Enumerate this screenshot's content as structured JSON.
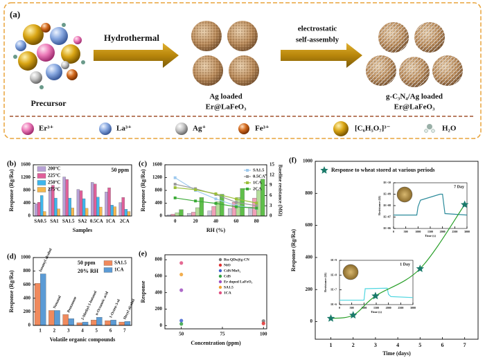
{
  "panel_a": {
    "label": "(a)",
    "step1": "Hydrothermal",
    "step2": [
      "electrostatic",
      "self-assembly"
    ],
    "precursor": "Precursor",
    "intermediate": [
      "Ag loaded",
      "Er@LaFeO₃"
    ],
    "product": [
      "g-C₃N₄/Ag loaded",
      "Er@LaFeO₃"
    ],
    "legend": [
      "Er³⁺",
      "La³⁺",
      "Ag⁺",
      "Fe³⁺",
      "[C₆H₅O₇]³⁻",
      "H₂O"
    ]
  },
  "chart_data": [
    {
      "type": "bar",
      "panel_label": "(b)",
      "annotations": [
        "50 ppm"
      ],
      "xlabel": "Samples",
      "ylabel": "Response (Rg/Ra)",
      "categories": [
        "SA0.5",
        "SA1",
        "SA1.5",
        "SA2",
        "0.5CA",
        "1CA",
        "2CA"
      ],
      "series": [
        {
          "name": "200°C",
          "color": "#b8a1d6",
          "values": [
            380,
            870,
            1220,
            830,
            1050,
            750,
            420
          ]
        },
        {
          "name": "225°C",
          "color": "#e0609a",
          "values": [
            430,
            960,
            1140,
            790,
            1000,
            880,
            580
          ]
        },
        {
          "name": "250°C",
          "color": "#3fb6ec",
          "values": [
            640,
            560,
            560,
            540,
            590,
            340,
            210
          ]
        },
        {
          "name": "275°C",
          "color": "#f5b74e",
          "values": [
            140,
            220,
            250,
            240,
            280,
            290,
            140
          ]
        }
      ],
      "ylim": [
        0,
        1600
      ],
      "yticks": [
        0,
        400,
        800,
        1200,
        1600
      ],
      "legend": "upper left"
    },
    {
      "type": "bar-line",
      "panel_label": "(c)",
      "xlabel": "RH (%)",
      "ylabel": "Response (Rg/Ra)",
      "y2label": "Baseline resistance (MΩ)",
      "categories": [
        0,
        20,
        40,
        60,
        80
      ],
      "series": [
        {
          "type": "bar",
          "color": "#c9c9dc",
          "values": [
            40,
            80,
            160,
            230,
            280
          ]
        },
        {
          "type": "bar",
          "color": "#f0a0b8",
          "values": [
            60,
            120,
            300,
            430,
            560
          ]
        },
        {
          "type": "bar",
          "color": "#b5dd9a",
          "values": [
            100,
            260,
            450,
            580,
            800
          ]
        },
        {
          "type": "bar",
          "color": "#5fbf4a",
          "values": [
            200,
            580,
            680,
            860,
            1150
          ]
        },
        {
          "type": "line",
          "name": "SA1.5",
          "color": "#9dc9ee",
          "axis": "y2",
          "values": [
            11.2,
            7.5,
            5,
            3,
            2.2
          ]
        },
        {
          "type": "line",
          "name": "0.5CA",
          "color": "#999999",
          "axis": "y2",
          "values": [
            9.3,
            8,
            6.3,
            4,
            3
          ]
        },
        {
          "type": "line",
          "name": "1CA",
          "color": "#9bbf3a",
          "axis": "y2",
          "values": [
            8.3,
            7.7,
            6.5,
            5,
            3.8
          ]
        },
        {
          "type": "line",
          "name": "2CA",
          "color": "#3aaa35",
          "axis": "y2",
          "values": [
            5.3,
            4.4,
            3.7,
            2.7,
            2.3
          ]
        }
      ],
      "ylim": [
        0,
        1600
      ],
      "yticks": [
        0,
        400,
        800,
        1200,
        1600
      ],
      "y2lim": [
        0,
        15
      ],
      "y2ticks": [
        0,
        3,
        6,
        9,
        12,
        15
      ],
      "legend": "upper right"
    },
    {
      "type": "bar",
      "panel_label": "(d)",
      "annotations": [
        "50 ppm",
        "20% RH"
      ],
      "xlabel": "Volatile organic compounds",
      "ylabel": "Response (Rg/Ra)",
      "categories": [
        1,
        2,
        3,
        4,
        5,
        6,
        7
      ],
      "compound_labels": [
        "Isoamyl alcohol",
        "Nonanal",
        "Pentanone",
        "2-Methyl-1-butanol",
        "n-Octanoic acid",
        "1-Octen-3-ol",
        "Hexyl alcohol"
      ],
      "series": [
        {
          "name": "SA1.5",
          "color": "#f08a5d",
          "values": [
            620,
            220,
            160,
            40,
            80,
            70,
            50
          ]
        },
        {
          "name": "1CA",
          "color": "#5b9bd5",
          "values": [
            760,
            220,
            100,
            50,
            120,
            80,
            60
          ]
        }
      ],
      "ylim": [
        0,
        1000
      ],
      "yticks": [
        0,
        200,
        400,
        600,
        800,
        1000
      ],
      "legend": "upper right"
    },
    {
      "type": "scatter",
      "panel_label": "(e)",
      "xlabel": "Concentration (ppm)",
      "ylabel": "Response",
      "series": [
        {
          "name": "Ru-QDs@g-CN",
          "color": "#777777",
          "x": [
            100
          ],
          "values": [
            55
          ]
        },
        {
          "name": "NiO",
          "color": "#e03030",
          "x": [
            100
          ],
          "values": [
            25
          ]
        },
        {
          "name": "CdS/MoS₂",
          "color": "#4060d0",
          "x": [
            50
          ],
          "values": [
            60
          ]
        },
        {
          "name": "CdS",
          "color": "#30a040",
          "x": [
            50
          ],
          "values": [
            20
          ]
        },
        {
          "name": "Er doped LaFeO₃",
          "color": "#a050c0",
          "x": [
            50
          ],
          "values": [
            430
          ]
        },
        {
          "name": "SA1.5",
          "color": "#f0a030",
          "x": [
            50
          ],
          "values": [
            620
          ]
        },
        {
          "name": "1CA",
          "color": "#e05080",
          "x": [
            50
          ],
          "values": [
            760
          ]
        }
      ],
      "xlim": [
        40,
        102
      ],
      "xticks": [
        50,
        75,
        100
      ],
      "ylim": [
        -40,
        860
      ],
      "yticks": [
        0,
        200,
        400,
        600,
        800
      ],
      "legend": "upper right"
    },
    {
      "type": "scatter",
      "panel_label": "(f)",
      "xlabel": "Time (days)",
      "ylabel": "Response (Rg/Ra)",
      "series": [
        {
          "name": "Response to wheat stored at various periods",
          "color": "#1a7a6a",
          "fit_color": "#2aa02a",
          "x": [
            1,
            2,
            3,
            5,
            7
          ],
          "values": [
            20,
            40,
            160,
            330,
            730
          ]
        }
      ],
      "xlim": [
        0.3,
        7.6
      ],
      "xticks": [
        1,
        2,
        3,
        4,
        5,
        6,
        7
      ],
      "ylim": [
        -110,
        1000
      ],
      "yticks": [
        0,
        200,
        400,
        600,
        800,
        1000
      ],
      "legend": "upper left",
      "insets": [
        {
          "label": "7 Day",
          "xlabel": "Time (s)",
          "ylabel": "Resistance (Ω)",
          "color": "#2a8a9a",
          "log_y": true,
          "x": [
            0,
            950,
            1000,
            1100,
            1900,
            2000,
            2100,
            3000
          ],
          "values": [
            15000000,
            15000000,
            80000000,
            300000000,
            1000000000,
            1000000000,
            20000000,
            15000000
          ],
          "xlim": [
            0,
            3000
          ],
          "xticks": [
            0,
            500,
            1000,
            1500,
            2000,
            2500,
            3000
          ],
          "ylim": [
            1000000,
            10000000000
          ],
          "yticks": [
            {
              "value": 1000000,
              "label": "1E+06"
            },
            {
              "value": 10000000,
              "label": "1E+07"
            },
            {
              "value": 100000000,
              "label": "1E+08"
            },
            {
              "value": 1000000000,
              "label": "1E+09"
            },
            {
              "value": 10000000000,
              "label": "1E+10"
            }
          ]
        },
        {
          "label": "1 Day",
          "xlabel": "Time (s)",
          "ylabel": "Resistance (Ω)",
          "color": "#4fd6e0",
          "log_y": true,
          "x": [
            0,
            1000,
            1050,
            1950,
            2000,
            2100,
            3000
          ],
          "values": [
            2000000,
            2000000,
            12000000,
            13000000,
            5000000,
            3500000,
            3000000
          ],
          "xlim": [
            0,
            3000
          ],
          "xticks": [
            0,
            500,
            1000,
            1500,
            2000,
            2500,
            3000
          ],
          "ylim": [
            1000000,
            1000000000
          ],
          "yticks": [
            {
              "value": 1000000,
              "label": "1E+6"
            },
            {
              "value": 10000000,
              "label": "1E+7"
            },
            {
              "value": 100000000,
              "label": "1E+8"
            },
            {
              "value": 1000000000,
              "label": "1E+9"
            }
          ]
        }
      ]
    }
  ]
}
